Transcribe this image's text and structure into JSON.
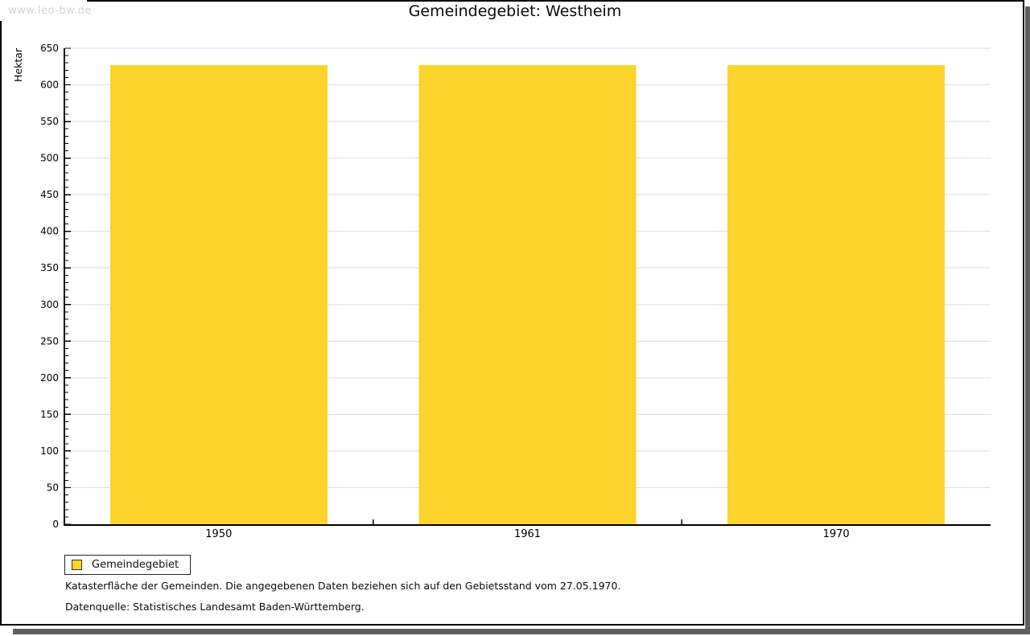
{
  "watermark": "www.leo-bw.de",
  "title": "Gemeindegebiet: Westheim",
  "chart_data": {
    "type": "bar",
    "title": "Gemeindegebiet: Westheim",
    "categories": [
      "1950",
      "1961",
      "1970"
    ],
    "series": [
      {
        "name": "Gemeindegebiet",
        "values": [
          627,
          627,
          627
        ]
      }
    ],
    "unit": "Hektar",
    "xlabel": "",
    "ylabel": "Hektar",
    "ylim": [
      0,
      650
    ],
    "ytick_major": 50,
    "ytick_minor": 10,
    "grid": "horizontal-major",
    "legend_position": "bottom-left",
    "bar_color": "#FCD42C"
  },
  "legend": {
    "items": [
      {
        "label": "Gemeindegebiet",
        "color": "#FCD42C"
      }
    ]
  },
  "footnotes": [
    "Katasterfläche der Gemeinden. Die angegebenen Daten beziehen sich auf den Gebietsstand vom 27.05.1970.",
    "Datenquelle: Statistisches Landesamt Baden-Württemberg."
  ],
  "colors": {
    "bar": "#FCD42C",
    "grid": "#DEDEDE",
    "axis": "#000000",
    "text": "#0A0A0A",
    "watermark": "#D4D4D4",
    "frame_border": "#000000",
    "shadow": "#5F5F5F"
  }
}
